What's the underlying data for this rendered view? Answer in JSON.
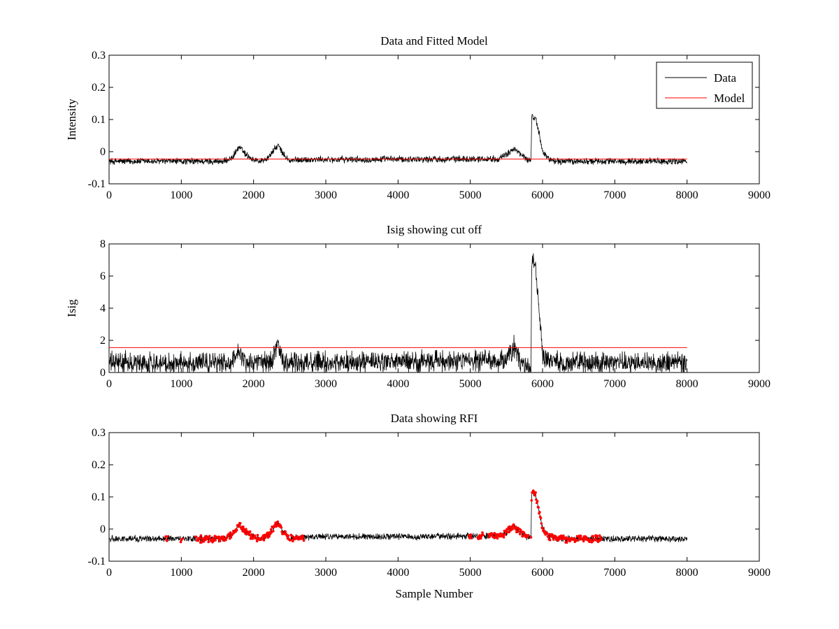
{
  "chart_data": [
    {
      "type": "line",
      "title": "Data and Fitted Model",
      "xlabel": "",
      "ylabel": "Intensity",
      "xlim": [
        0,
        9000
      ],
      "ylim": [
        -0.1,
        0.3
      ],
      "xticks": [
        0,
        1000,
        2000,
        3000,
        4000,
        5000,
        6000,
        7000,
        8000,
        9000
      ],
      "yticks": [
        -0.1,
        0,
        0.1,
        0.2,
        0.3
      ],
      "legend": {
        "position": "top-right",
        "entries": [
          "Data",
          "Model"
        ]
      },
      "colors": {
        "Data": "#000000",
        "Model": "#ff0000"
      },
      "series": [
        {
          "name": "Data",
          "noise": 0.009,
          "x": [
            0,
            1600,
            1700,
            1800,
            1900,
            2000,
            2100,
            2200,
            2280,
            2340,
            2400,
            2500,
            2600,
            5400,
            5500,
            5600,
            5700,
            5800,
            5840,
            5850,
            5900,
            5950,
            6000,
            6100,
            6200,
            8000
          ],
          "y": [
            -0.03,
            -0.03,
            -0.02,
            0.015,
            -0.01,
            -0.025,
            -0.03,
            -0.02,
            0.005,
            0.02,
            -0.005,
            -0.03,
            -0.025,
            -0.022,
            -0.01,
            0.01,
            -0.01,
            -0.025,
            -0.025,
            0.11,
            0.105,
            0.06,
            0.0,
            -0.025,
            -0.03,
            -0.03
          ]
        },
        {
          "name": "Model",
          "x": [
            0,
            8000
          ],
          "y": [
            -0.023,
            -0.023
          ]
        }
      ]
    },
    {
      "type": "line",
      "title": "Isig showing cut off",
      "xlabel": "",
      "ylabel": "Isig",
      "xlim": [
        0,
        9000
      ],
      "ylim": [
        0,
        8
      ],
      "xticks": [
        0,
        1000,
        2000,
        3000,
        4000,
        5000,
        6000,
        7000,
        8000,
        9000
      ],
      "yticks": [
        0,
        2,
        4,
        6,
        8
      ],
      "colors": {
        "Isig": "#000000",
        "cutoff": "#ff0000"
      },
      "series": [
        {
          "name": "",
          "noise": 0.55,
          "x": [
            0,
            1700,
            1800,
            1900,
            2250,
            2330,
            2400,
            5500,
            5600,
            5700,
            5800,
            5840,
            5850,
            5900,
            5950,
            6000,
            6100,
            8000
          ],
          "y": [
            0.6,
            0.6,
            1.4,
            0.6,
            0.7,
            1.8,
            0.6,
            0.7,
            1.6,
            0.6,
            0.3,
            0.3,
            7.0,
            6.6,
            4.0,
            1.0,
            0.6,
            0.6
          ]
        },
        {
          "name": "",
          "x": [
            0,
            8000
          ],
          "y": [
            1.55,
            1.55
          ]
        }
      ]
    },
    {
      "type": "line",
      "title": "Data showing RFI",
      "xlabel": "Sample Number",
      "ylabel": "",
      "xlim": [
        0,
        9000
      ],
      "ylim": [
        -0.1,
        0.3
      ],
      "xticks": [
        0,
        1000,
        2000,
        3000,
        4000,
        5000,
        6000,
        7000,
        8000,
        9000
      ],
      "yticks": [
        -0.1,
        0,
        0.1,
        0.2,
        0.3
      ],
      "colors": {
        "data": "#000000",
        "rfi": "#ff0000"
      },
      "series": [
        {
          "name": "",
          "noise": 0.009,
          "x": [
            0,
            1600,
            1700,
            1800,
            1900,
            2000,
            2100,
            2200,
            2280,
            2340,
            2400,
            2500,
            2600,
            5400,
            5500,
            5600,
            5700,
            5800,
            5840,
            5850,
            5900,
            5950,
            6000,
            6100,
            6200,
            8000
          ],
          "y": [
            -0.03,
            -0.03,
            -0.02,
            0.015,
            -0.01,
            -0.025,
            -0.03,
            -0.02,
            0.005,
            0.02,
            -0.005,
            -0.03,
            -0.025,
            -0.022,
            -0.01,
            0.01,
            -0.01,
            -0.025,
            -0.025,
            0.11,
            0.105,
            0.06,
            0.0,
            -0.025,
            -0.03,
            -0.03
          ]
        }
      ],
      "flagged_ranges": [
        [
          780,
          810
        ],
        [
          990,
          1020
        ],
        [
          1200,
          2700
        ],
        [
          4980,
          5020
        ],
        [
          5100,
          5180
        ],
        [
          5250,
          5800
        ],
        [
          5840,
          6820
        ]
      ]
    }
  ]
}
